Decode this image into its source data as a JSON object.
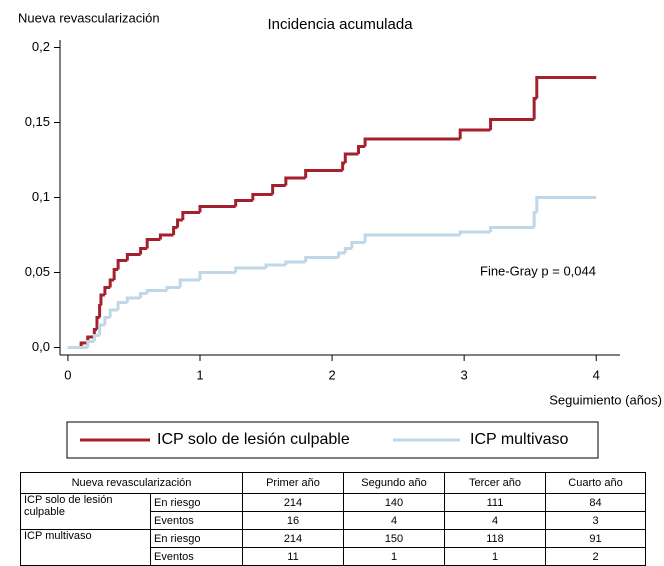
{
  "chart_data": {
    "type": "step",
    "title": "Incidencia acumulada",
    "ylabel": "Nueva revascularización",
    "xlabel": "Seguimiento (años)",
    "annotation": "Fine-Gray p = 0,044",
    "xlim": [
      -0.06,
      4.18
    ],
    "xticks": [
      0,
      1,
      2,
      3,
      4
    ],
    "ylim": [
      -0.005,
      0.205
    ],
    "yticks": [
      {
        "value": 0,
        "label": "0,0"
      },
      {
        "value": 0.05,
        "label": "0,05"
      },
      {
        "value": 0.1,
        "label": "0,1"
      },
      {
        "value": 0.15,
        "label": "0,15"
      },
      {
        "value": 0.2,
        "label": "0,2"
      }
    ],
    "series": [
      {
        "name": "ICP solo de lesión culpable",
        "color": "#a4202c",
        "x": [
          0,
          0.1,
          0.15,
          0.2,
          0.22,
          0.24,
          0.25,
          0.28,
          0.32,
          0.35,
          0.38,
          0.45,
          0.55,
          0.6,
          0.7,
          0.8,
          0.83,
          0.87,
          1.0,
          1.27,
          1.4,
          1.55,
          1.65,
          1.8,
          2.08,
          2.1,
          2.2,
          2.25,
          2.97,
          3.2,
          3.53,
          3.55,
          4.0
        ],
        "values": [
          0,
          0.003,
          0.007,
          0.012,
          0.02,
          0.028,
          0.035,
          0.04,
          0.045,
          0.052,
          0.058,
          0.062,
          0.066,
          0.072,
          0.075,
          0.08,
          0.085,
          0.09,
          0.094,
          0.098,
          0.102,
          0.108,
          0.113,
          0.118,
          0.123,
          0.129,
          0.134,
          0.139,
          0.145,
          0.152,
          0.166,
          0.18,
          0.18
        ]
      },
      {
        "name": "ICP multivaso",
        "color": "#bfd7e6",
        "x": [
          0,
          0.15,
          0.2,
          0.24,
          0.28,
          0.32,
          0.38,
          0.45,
          0.55,
          0.6,
          0.75,
          0.85,
          1.0,
          1.27,
          1.5,
          1.65,
          1.8,
          2.05,
          2.1,
          2.15,
          2.25,
          2.97,
          3.2,
          3.53,
          3.55,
          4.0
        ],
        "values": [
          0,
          0.004,
          0.008,
          0.015,
          0.02,
          0.025,
          0.03,
          0.033,
          0.036,
          0.038,
          0.04,
          0.045,
          0.05,
          0.053,
          0.055,
          0.057,
          0.06,
          0.063,
          0.066,
          0.07,
          0.075,
          0.077,
          0.08,
          0.09,
          0.1,
          0.1
        ]
      }
    ]
  },
  "table": {
    "header": [
      "Nueva revascularización",
      "Primer año",
      "Segundo año",
      "Tercer año",
      "Cuarto año"
    ],
    "groups": [
      {
        "label": "ICP solo de lesión culpable",
        "rows": [
          {
            "label": "En riesgo",
            "values": [
              "214",
              "140",
              "111",
              "84"
            ]
          },
          {
            "label": "Eventos",
            "values": [
              "16",
              "4",
              "4",
              "3"
            ]
          }
        ]
      },
      {
        "label": "ICP multivaso",
        "rows": [
          {
            "label": "En riesgo",
            "values": [
              "214",
              "150",
              "118",
              "91"
            ]
          },
          {
            "label": "Eventos",
            "values": [
              "11",
              "1",
              "1",
              "2"
            ]
          }
        ]
      }
    ]
  }
}
